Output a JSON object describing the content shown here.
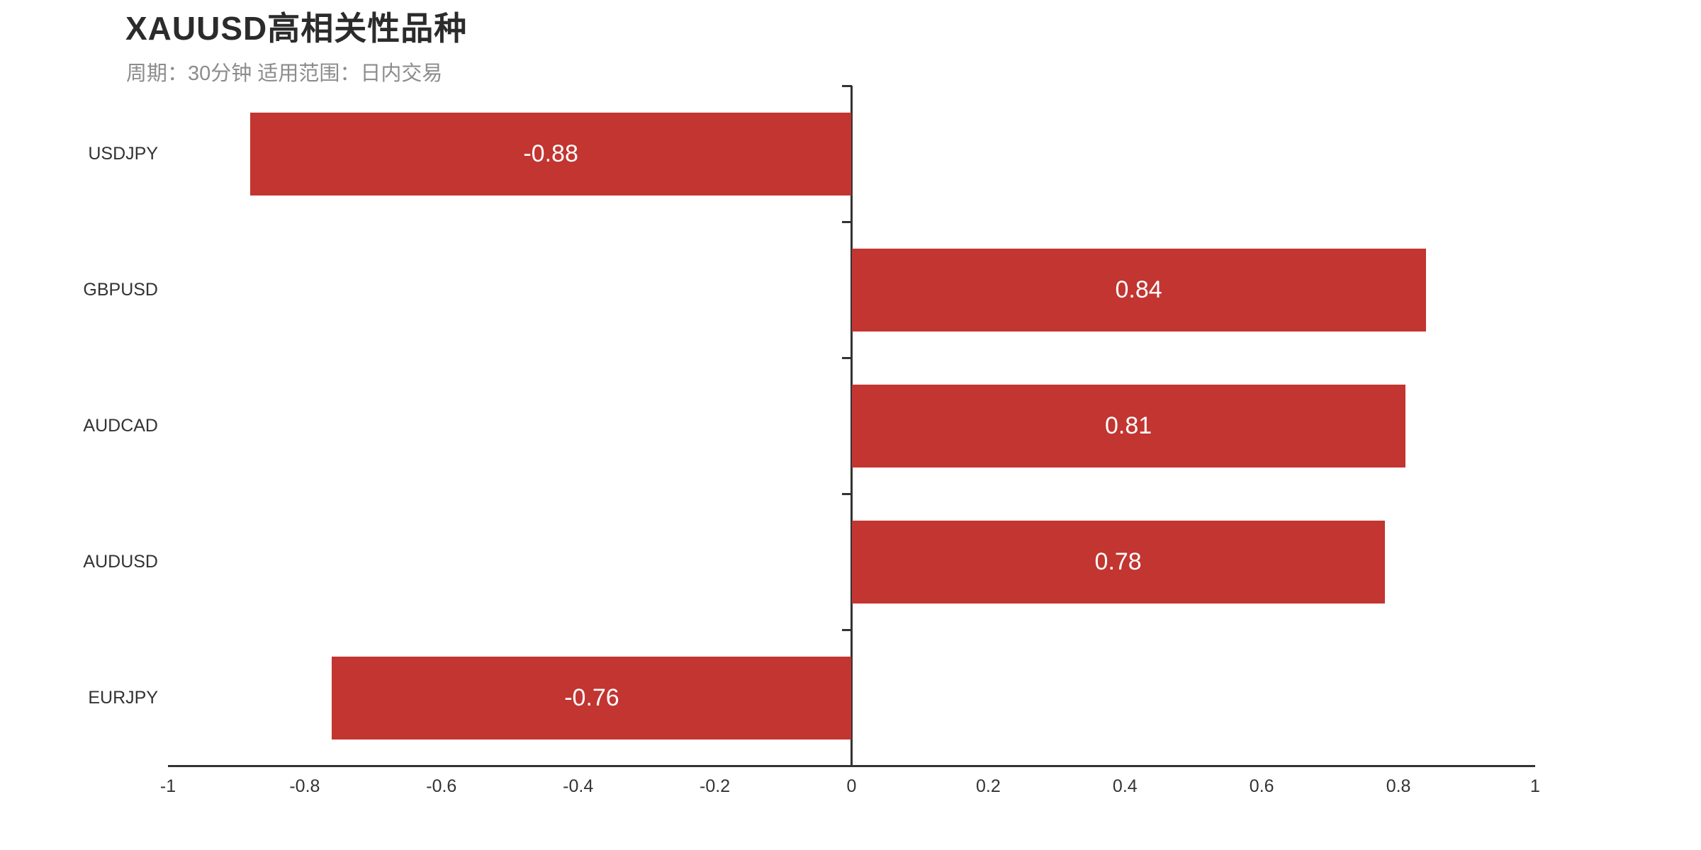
{
  "page": {
    "background_color": "#ffffff"
  },
  "chart_data": {
    "type": "bar",
    "orientation": "horizontal",
    "title": "XAUUSD高相关性品种",
    "subtitle": "周期：30分钟 适用范围：日内交易",
    "categories": [
      "USDJPY",
      "GBPUSD",
      "AUDCAD",
      "AUDUSD",
      "EURJPY"
    ],
    "values": [
      -0.88,
      0.84,
      0.81,
      0.78,
      -0.76
    ],
    "value_labels": [
      "-0.88",
      "0.84",
      "0.81",
      "0.78",
      "-0.76"
    ],
    "xlabel": "",
    "ylabel": "",
    "xlim": [
      -1,
      1
    ],
    "x_ticks": [
      -1,
      -0.8,
      -0.6,
      -0.4,
      -0.2,
      0,
      0.2,
      0.4,
      0.6,
      0.8,
      1
    ],
    "x_tick_labels": [
      "-1",
      "-0.8",
      "-0.6",
      "-0.4",
      "-0.2",
      "0",
      "0.2",
      "0.4",
      "0.6",
      "0.8",
      "1"
    ],
    "grid": false,
    "legend": false,
    "value_label_position": "inside-center",
    "colors": {
      "bar": "#c23531",
      "bar_value_label": "#ffffff",
      "axis_line": "#333333",
      "tick_label": "#333333",
      "title": "#2b2b2b",
      "subtitle": "#8c8c8c"
    }
  }
}
